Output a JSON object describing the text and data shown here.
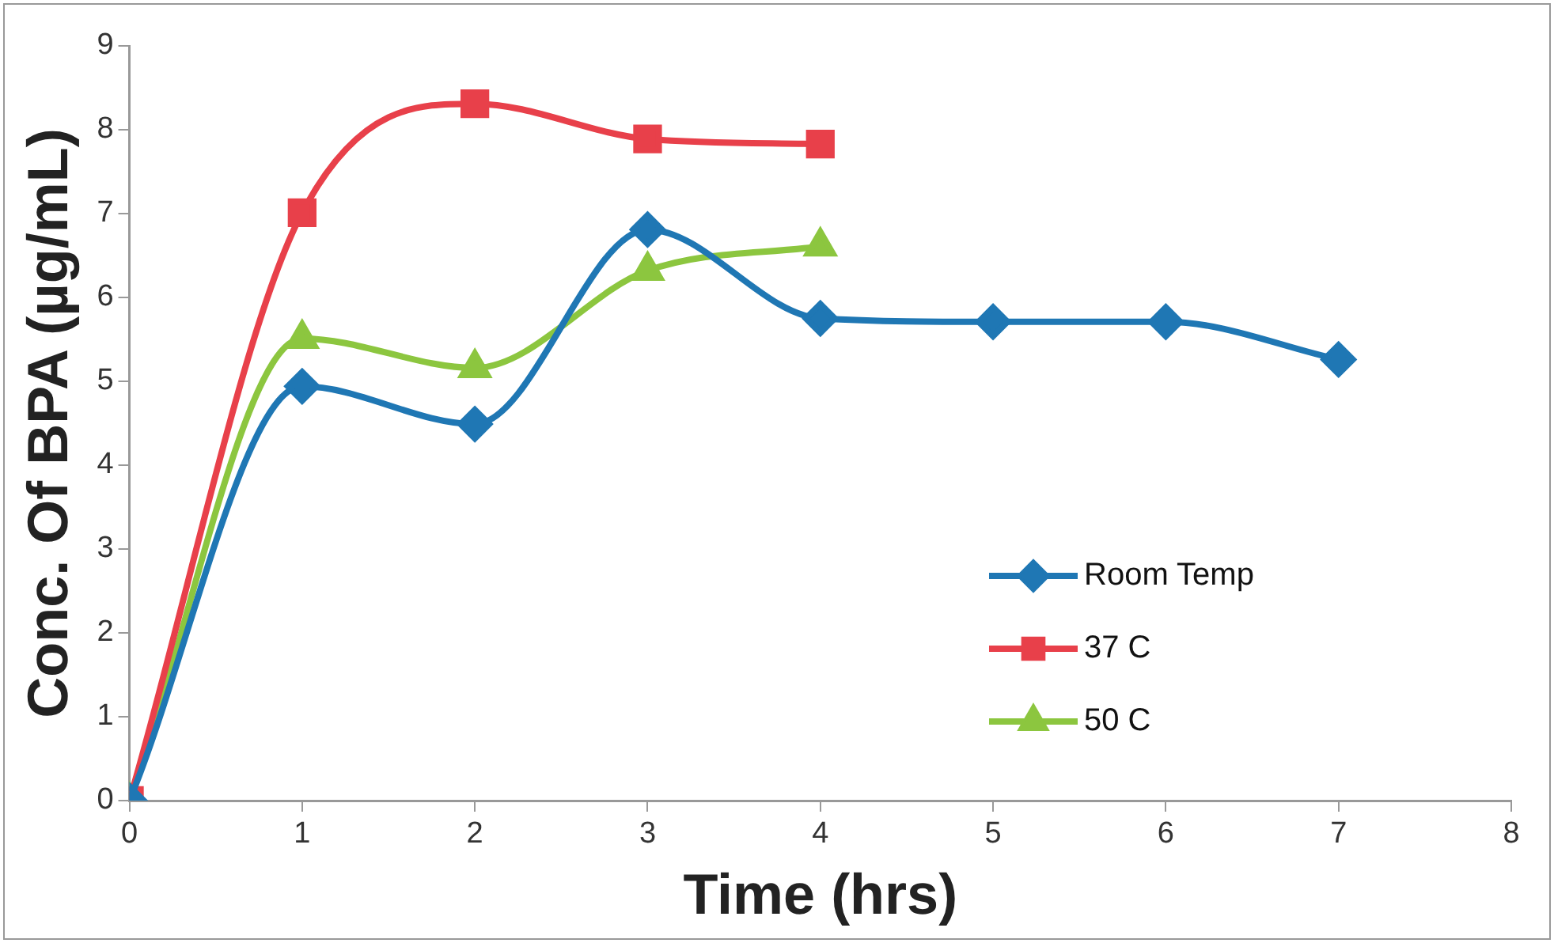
{
  "chart_data": {
    "type": "line",
    "xlabel": "Time (hrs)",
    "ylabel": "Conc. Of BPA (µg/mL)",
    "xlim": [
      0,
      8
    ],
    "xticks": [
      0,
      1,
      2,
      3,
      4,
      5,
      6,
      7,
      8
    ],
    "ylim": [
      0,
      9
    ],
    "yticks": [
      0,
      1,
      2,
      3,
      4,
      5,
      6,
      7,
      8,
      9
    ],
    "grid": false,
    "legend": "bottom right",
    "series": [
      {
        "name": "Room Temp",
        "color": "#1f77b4",
        "marker": "diamond",
        "x": [
          0,
          1,
          2,
          3,
          4,
          5,
          6,
          7
        ],
        "values": [
          0,
          4.94,
          4.49,
          6.81,
          5.75,
          5.71,
          5.71,
          5.26
        ]
      },
      {
        "name": "37 C",
        "color": "#e8404a",
        "marker": "square",
        "x": [
          0,
          1,
          2,
          3,
          4
        ],
        "values": [
          0,
          7.01,
          8.31,
          7.89,
          7.83
        ]
      },
      {
        "name": "50 C",
        "color": "#8cc63f",
        "marker": "triangle",
        "x": [
          0,
          1,
          2,
          3,
          4
        ],
        "values": [
          0,
          5.51,
          5.16,
          6.32,
          6.61
        ]
      }
    ]
  }
}
